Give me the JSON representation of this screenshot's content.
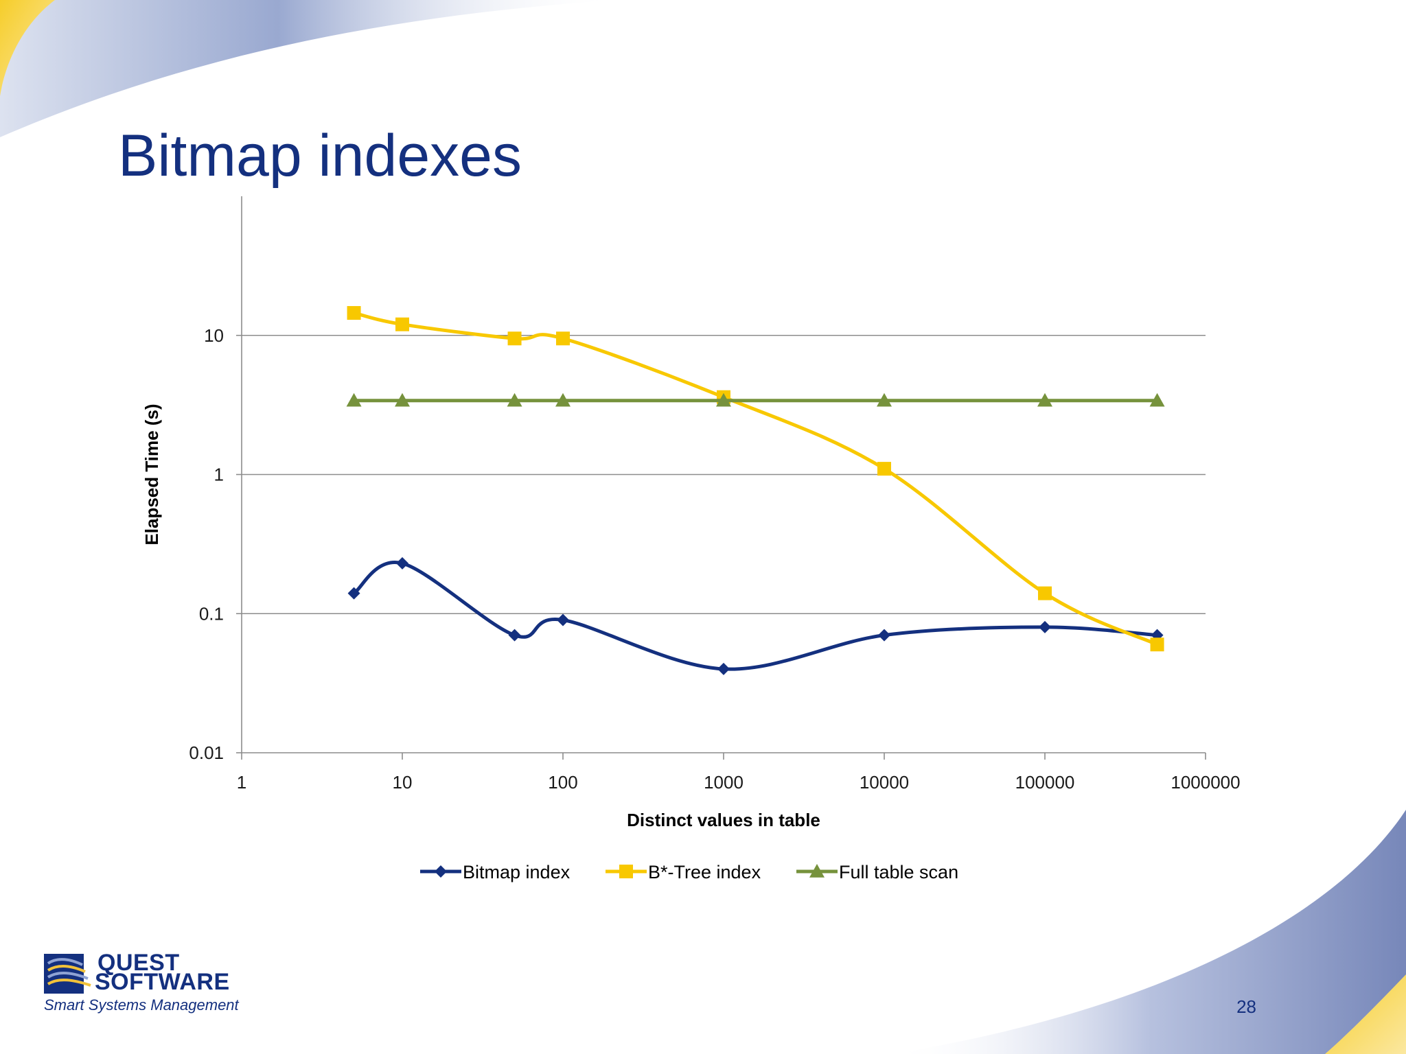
{
  "slide": {
    "title": "Bitmap indexes",
    "page_number": "28",
    "logo": {
      "line1": "QUEST",
      "line2": "SOFTWARE",
      "tagline": "Smart Systems Management"
    }
  },
  "chart_data": {
    "type": "line",
    "title": "",
    "xlabel": "Distinct values in table",
    "ylabel": "Elapsed Time (s)",
    "x_scale": "log",
    "y_scale": "log",
    "xlim": [
      1,
      1000000
    ],
    "ylim": [
      0.01,
      100
    ],
    "x_ticks": [
      1,
      10,
      100,
      1000,
      10000,
      100000,
      1000000
    ],
    "x_tick_labels": [
      "1",
      "10",
      "100",
      "1000",
      "10000",
      "100000",
      "1000000"
    ],
    "y_ticks": [
      0.01,
      0.1,
      1,
      10
    ],
    "y_tick_labels": [
      "0.01",
      "0.1",
      "1",
      "10"
    ],
    "gridlines": "horizontal",
    "legend_position": "bottom",
    "x": [
      5,
      10,
      50,
      100,
      1000,
      10000,
      100000,
      500000
    ],
    "series": [
      {
        "name": "Bitmap index",
        "color": "#14307f",
        "marker": "diamond",
        "values": [
          0.14,
          0.23,
          0.07,
          0.09,
          0.04,
          0.07,
          0.08,
          0.07
        ]
      },
      {
        "name": "B*-Tree index",
        "color": "#f8c800",
        "marker": "square",
        "values": [
          14.5,
          12,
          9.5,
          9.5,
          3.6,
          1.1,
          0.14,
          0.06
        ]
      },
      {
        "name": "Full table scan",
        "color": "#76923c",
        "marker": "triangle",
        "values": [
          3.4,
          3.4,
          3.4,
          3.4,
          3.4,
          3.4,
          3.4,
          3.4
        ]
      }
    ]
  }
}
